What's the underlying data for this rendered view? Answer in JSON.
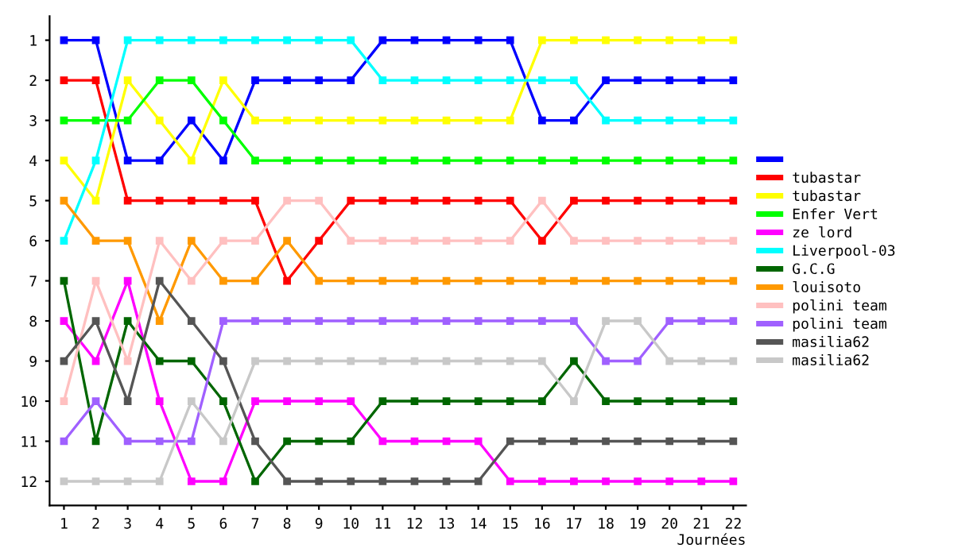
{
  "chart_data": {
    "type": "line",
    "xlabel": "Journées",
    "x": [
      1,
      2,
      3,
      4,
      5,
      6,
      7,
      8,
      9,
      10,
      11,
      12,
      13,
      14,
      15,
      16,
      17,
      18,
      19,
      20,
      21,
      22
    ],
    "ylim": [
      12.6,
      0.4
    ],
    "yticks": [
      1,
      2,
      3,
      4,
      5,
      6,
      7,
      8,
      9,
      10,
      11,
      12
    ],
    "xlim": [
      0.55,
      22.4
    ],
    "xticks": [
      1,
      2,
      3,
      4,
      5,
      6,
      7,
      8,
      9,
      10,
      11,
      12,
      13,
      14,
      15,
      16,
      17,
      18,
      19,
      20,
      21,
      22
    ],
    "marker": "square",
    "line_style": "solid",
    "grid": false,
    "legend": "right",
    "series": [
      {
        "color": "#0000ff",
        "values": [
          1,
          1,
          4,
          4,
          3,
          4,
          2,
          2,
          2,
          2,
          1,
          1,
          1,
          1,
          1,
          3,
          3,
          2,
          2,
          2,
          2,
          2
        ]
      },
      {
        "name": "tubastar",
        "color": "#ff0000",
        "values": [
          2,
          2,
          5,
          5,
          5,
          5,
          5,
          7,
          6,
          5,
          5,
          5,
          5,
          5,
          5,
          6,
          5,
          5,
          5,
          5,
          5,
          5
        ]
      },
      {
        "name": "tubastar",
        "color": "#ffff00",
        "values": [
          4,
          5,
          2,
          3,
          4,
          2,
          3,
          3,
          3,
          3,
          3,
          3,
          3,
          3,
          3,
          1,
          1,
          1,
          1,
          1,
          1,
          1
        ]
      },
      {
        "name": "Enfer Vert",
        "color": "#00ff00",
        "values": [
          3,
          3,
          3,
          2,
          2,
          3,
          4,
          4,
          4,
          4,
          4,
          4,
          4,
          4,
          4,
          4,
          4,
          4,
          4,
          4,
          4,
          4
        ]
      },
      {
        "name": "ze lord",
        "color": "#ff00ff",
        "values": [
          8,
          9,
          7,
          10,
          12,
          12,
          10,
          10,
          10,
          10,
          11,
          11,
          11,
          11,
          12,
          12,
          12,
          12,
          12,
          12,
          12,
          12
        ]
      },
      {
        "name": "Liverpool-03",
        "color": "#00ffff",
        "values": [
          6,
          4,
          1,
          1,
          1,
          1,
          1,
          1,
          1,
          1,
          2,
          2,
          2,
          2,
          2,
          2,
          2,
          3,
          3,
          3,
          3,
          3
        ]
      },
      {
        "name": "G.C.G",
        "color": "#006600",
        "values": [
          7,
          11,
          8,
          9,
          9,
          10,
          12,
          11,
          11,
          11,
          10,
          10,
          10,
          10,
          10,
          10,
          9,
          10,
          10,
          10,
          10,
          10
        ]
      },
      {
        "name": "louisoto",
        "color": "#ff9900",
        "values": [
          5,
          6,
          6,
          8,
          6,
          7,
          7,
          6,
          7,
          7,
          7,
          7,
          7,
          7,
          7,
          7,
          7,
          7,
          7,
          7,
          7,
          7
        ]
      },
      {
        "name": "polini team",
        "color": "#ffc0c0",
        "values": [
          10,
          7,
          9,
          6,
          7,
          6,
          6,
          5,
          5,
          6,
          6,
          6,
          6,
          6,
          6,
          5,
          6,
          6,
          6,
          6,
          6,
          6
        ]
      },
      {
        "name": "polini team",
        "color": "#a060ff",
        "values": [
          11,
          10,
          11,
          11,
          11,
          8,
          8,
          8,
          8,
          8,
          8,
          8,
          8,
          8,
          8,
          8,
          8,
          9,
          9,
          8,
          8,
          8
        ]
      },
      {
        "name": "masilia62",
        "color": "#555555",
        "values": [
          9,
          8,
          10,
          7,
          8,
          9,
          11,
          12,
          12,
          12,
          12,
          12,
          12,
          12,
          11,
          11,
          11,
          11,
          11,
          11,
          11,
          11
        ]
      },
      {
        "name": "masilia62",
        "color": "#c8c8c8",
        "values": [
          12,
          12,
          12,
          12,
          10,
          11,
          9,
          9,
          9,
          9,
          9,
          9,
          9,
          9,
          9,
          9,
          10,
          8,
          8,
          9,
          9,
          9
        ]
      }
    ]
  }
}
